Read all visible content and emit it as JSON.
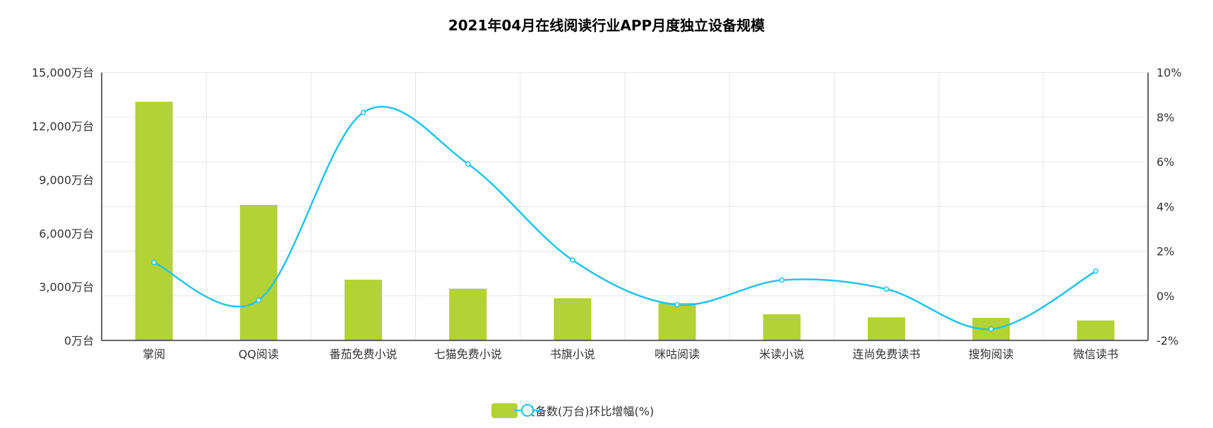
{
  "title": "2021年04月在线阅读行业APP月度独立设备规模",
  "colors": {
    "bar": "#b2d235",
    "line": "#20c4ec",
    "grid": "#e6e6e6",
    "axis": "#333333"
  },
  "legend": {
    "bar_label": "设备数(万台)",
    "line_label": "环比增幅(%)"
  },
  "left_axis": {
    "ticks": [
      "0万台",
      "3,000万台",
      "6,000万台",
      "9,000万台",
      "12,000万台",
      "15,000万台"
    ]
  },
  "right_axis": {
    "ticks": [
      "-2%",
      "0%",
      "2%",
      "4%",
      "6%",
      "8%",
      "10%"
    ]
  },
  "chart_data": {
    "type": "bar",
    "title": "2021年04月在线阅读行业APP月度独立设备规模",
    "xlabel": "",
    "ylabel": "",
    "categories": [
      "掌阅",
      "QQ阅读",
      "番茄免费小说",
      "七猫免费小说",
      "书旗小说",
      "咪咕阅读",
      "米读小说",
      "连尚免费读书",
      "搜狗阅读",
      "微信读书"
    ],
    "series": [
      {
        "name": "设备数(万台)",
        "type": "bar",
        "axis": "left",
        "values": [
          13367,
          7593,
          3401,
          2899,
          2361,
          2096,
          1463,
          1292,
          1265,
          1119
        ]
      },
      {
        "name": "环比增幅(%)",
        "type": "line",
        "axis": "right",
        "smooth": true,
        "values": [
          1.49,
          -0.2,
          8.21,
          5.91,
          1.6,
          -0.4,
          0.7,
          0.3,
          -1.49,
          1.1
        ]
      }
    ],
    "ylim": [
      0,
      15000
    ],
    "y2lim": [
      -2,
      10
    ],
    "grid": true,
    "legend_position": "bottom"
  }
}
